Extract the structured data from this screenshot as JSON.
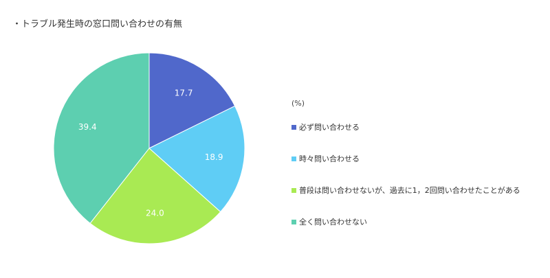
{
  "title": "・トラブル発生時の窓口問い合わせの有無",
  "chart_data": {
    "type": "pie",
    "unit": "(%)",
    "title": "・トラブル発生時の窓口問い合わせの有無",
    "start_angle": "12 o'clock",
    "direction": "clockwise",
    "legend_position": "right",
    "slices": [
      {
        "label": "必ず問い合わせる",
        "value": 17.7,
        "color": "#5068CB"
      },
      {
        "label": "時々問い合わせる",
        "value": 18.9,
        "color": "#5FCDF5"
      },
      {
        "label": "普段は問い合わせないが、過去に1，2回問い合わせたことがある",
        "value": 24.0,
        "color": "#A9EA53"
      },
      {
        "label": "全く問い合わせない",
        "value": 39.4,
        "color": "#5DCFB0"
      }
    ]
  }
}
